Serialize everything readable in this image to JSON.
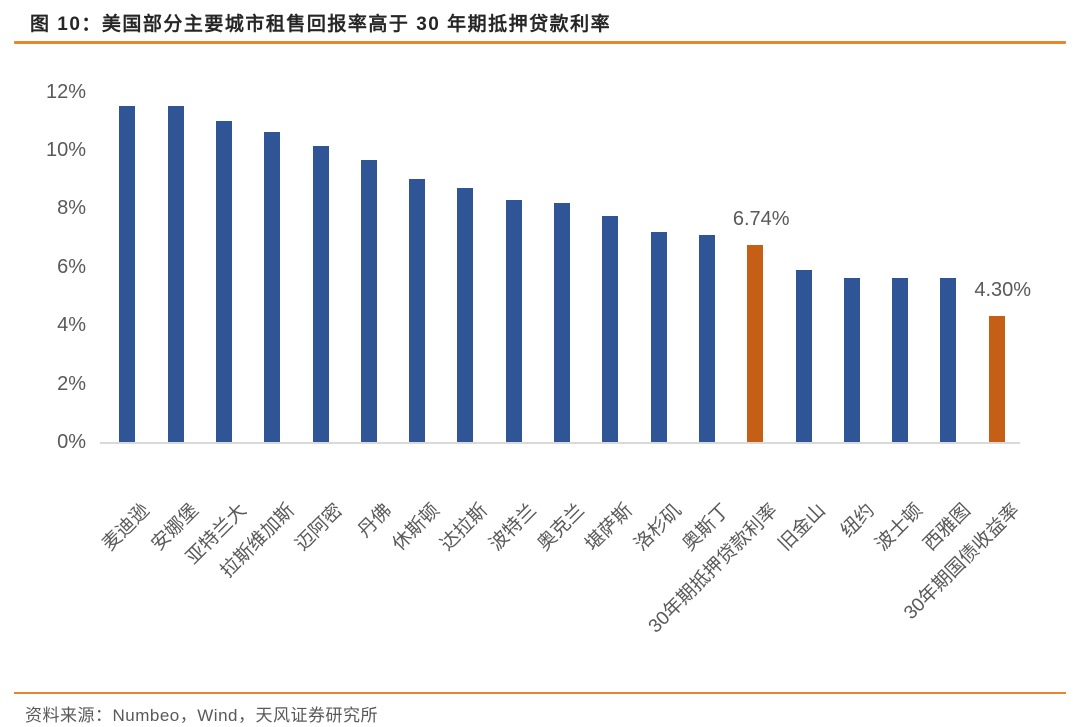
{
  "header": {
    "title": "图 10：美国部分主要城市租售回报率高于 30 年期抵押贷款利率"
  },
  "chart_data": {
    "type": "bar",
    "title": "美国部分主要城市租售回报率高于 30 年期抵押贷款利率",
    "categories": [
      "麦迪逊",
      "安娜堡",
      "亚特兰大",
      "拉斯维加斯",
      "迈阿密",
      "丹佛",
      "休斯顿",
      "达拉斯",
      "波特兰",
      "奥克兰",
      "堪萨斯",
      "洛杉矶",
      "奥斯丁",
      "30年期抵押贷款利率",
      "旧金山",
      "纽约",
      "波士顿",
      "西雅图",
      "30年期国债收益率"
    ],
    "values": [
      11.5,
      11.5,
      11.0,
      10.6,
      10.15,
      9.65,
      9.0,
      8.7,
      8.3,
      8.2,
      7.75,
      7.2,
      7.1,
      6.74,
      5.9,
      5.6,
      5.6,
      5.6,
      4.3
    ],
    "unit": "%",
    "highlight_indices": [
      13,
      18
    ],
    "annotations": [
      {
        "index": 13,
        "text": "6.74%"
      },
      {
        "index": 18,
        "text": "4.30%"
      }
    ],
    "y_ticks": [
      "0%",
      "2%",
      "4%",
      "6%",
      "8%",
      "10%",
      "12%"
    ],
    "ylim": [
      0,
      12
    ],
    "grid": false,
    "legend": null,
    "xlabel": "",
    "ylabel": "",
    "bar_color": "#2F5597",
    "highlight_color": "#C55F15"
  },
  "footer": {
    "source": "资料来源：Numbeo，Wind，天风证券研究所"
  },
  "colors": {
    "accent_rule": "#E8862D",
    "text_gray": "#595959",
    "axis_line": "#D9D9D9",
    "title_text": "#262626"
  }
}
